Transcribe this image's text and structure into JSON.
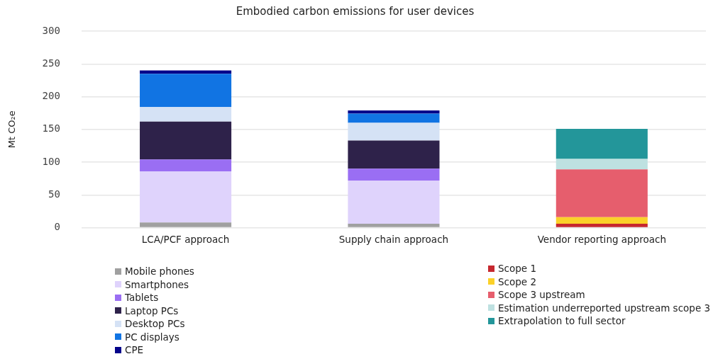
{
  "chart_data": {
    "type": "bar",
    "title": "Embodied carbon emissions for user devices",
    "ylabel": "Mt CO₂e",
    "categories": [
      "LCA/PCF approach",
      "Supply chain approach",
      "Vendor reporting approach"
    ],
    "stacked": true,
    "ylim": [
      0,
      300
    ],
    "yticks": [
      0,
      50,
      100,
      150,
      200,
      250,
      300
    ],
    "grid": "y",
    "legend": "bottom",
    "series": [
      {
        "name": "Mobile phones",
        "color": "#a0a0a0",
        "values": [
          8,
          6,
          null
        ]
      },
      {
        "name": "Smartphones",
        "color": "#dfd3fc",
        "values": [
          78,
          66,
          null
        ]
      },
      {
        "name": "Tablets",
        "color": "#9a6ef3",
        "values": [
          18,
          18,
          null
        ]
      },
      {
        "name": "Laptop PCs",
        "color": "#2e224a",
        "values": [
          58,
          43,
          null
        ]
      },
      {
        "name": "Desktop PCs",
        "color": "#d5e2f5",
        "values": [
          22,
          27,
          null
        ]
      },
      {
        "name": "PC displays",
        "color": "#1174e3",
        "values": [
          51,
          14,
          null
        ]
      },
      {
        "name": "CPE",
        "color": "#04038a",
        "values": [
          5,
          5,
          null
        ]
      },
      {
        "name": "Scope 1",
        "color": "#c6282f",
        "values": [
          null,
          null,
          6
        ]
      },
      {
        "name": "Scope 2",
        "color": "#fbd129",
        "values": [
          null,
          null,
          10
        ]
      },
      {
        "name": "Scope 3 upstream",
        "color": "#e65e6d",
        "values": [
          null,
          null,
          73
        ]
      },
      {
        "name": "Estimation underreported upstream scope 3",
        "color": "#bee1e1",
        "values": [
          null,
          null,
          16
        ]
      },
      {
        "name": "Extrapolation to full sector",
        "color": "#23969a",
        "values": [
          null,
          null,
          46
        ]
      }
    ]
  }
}
